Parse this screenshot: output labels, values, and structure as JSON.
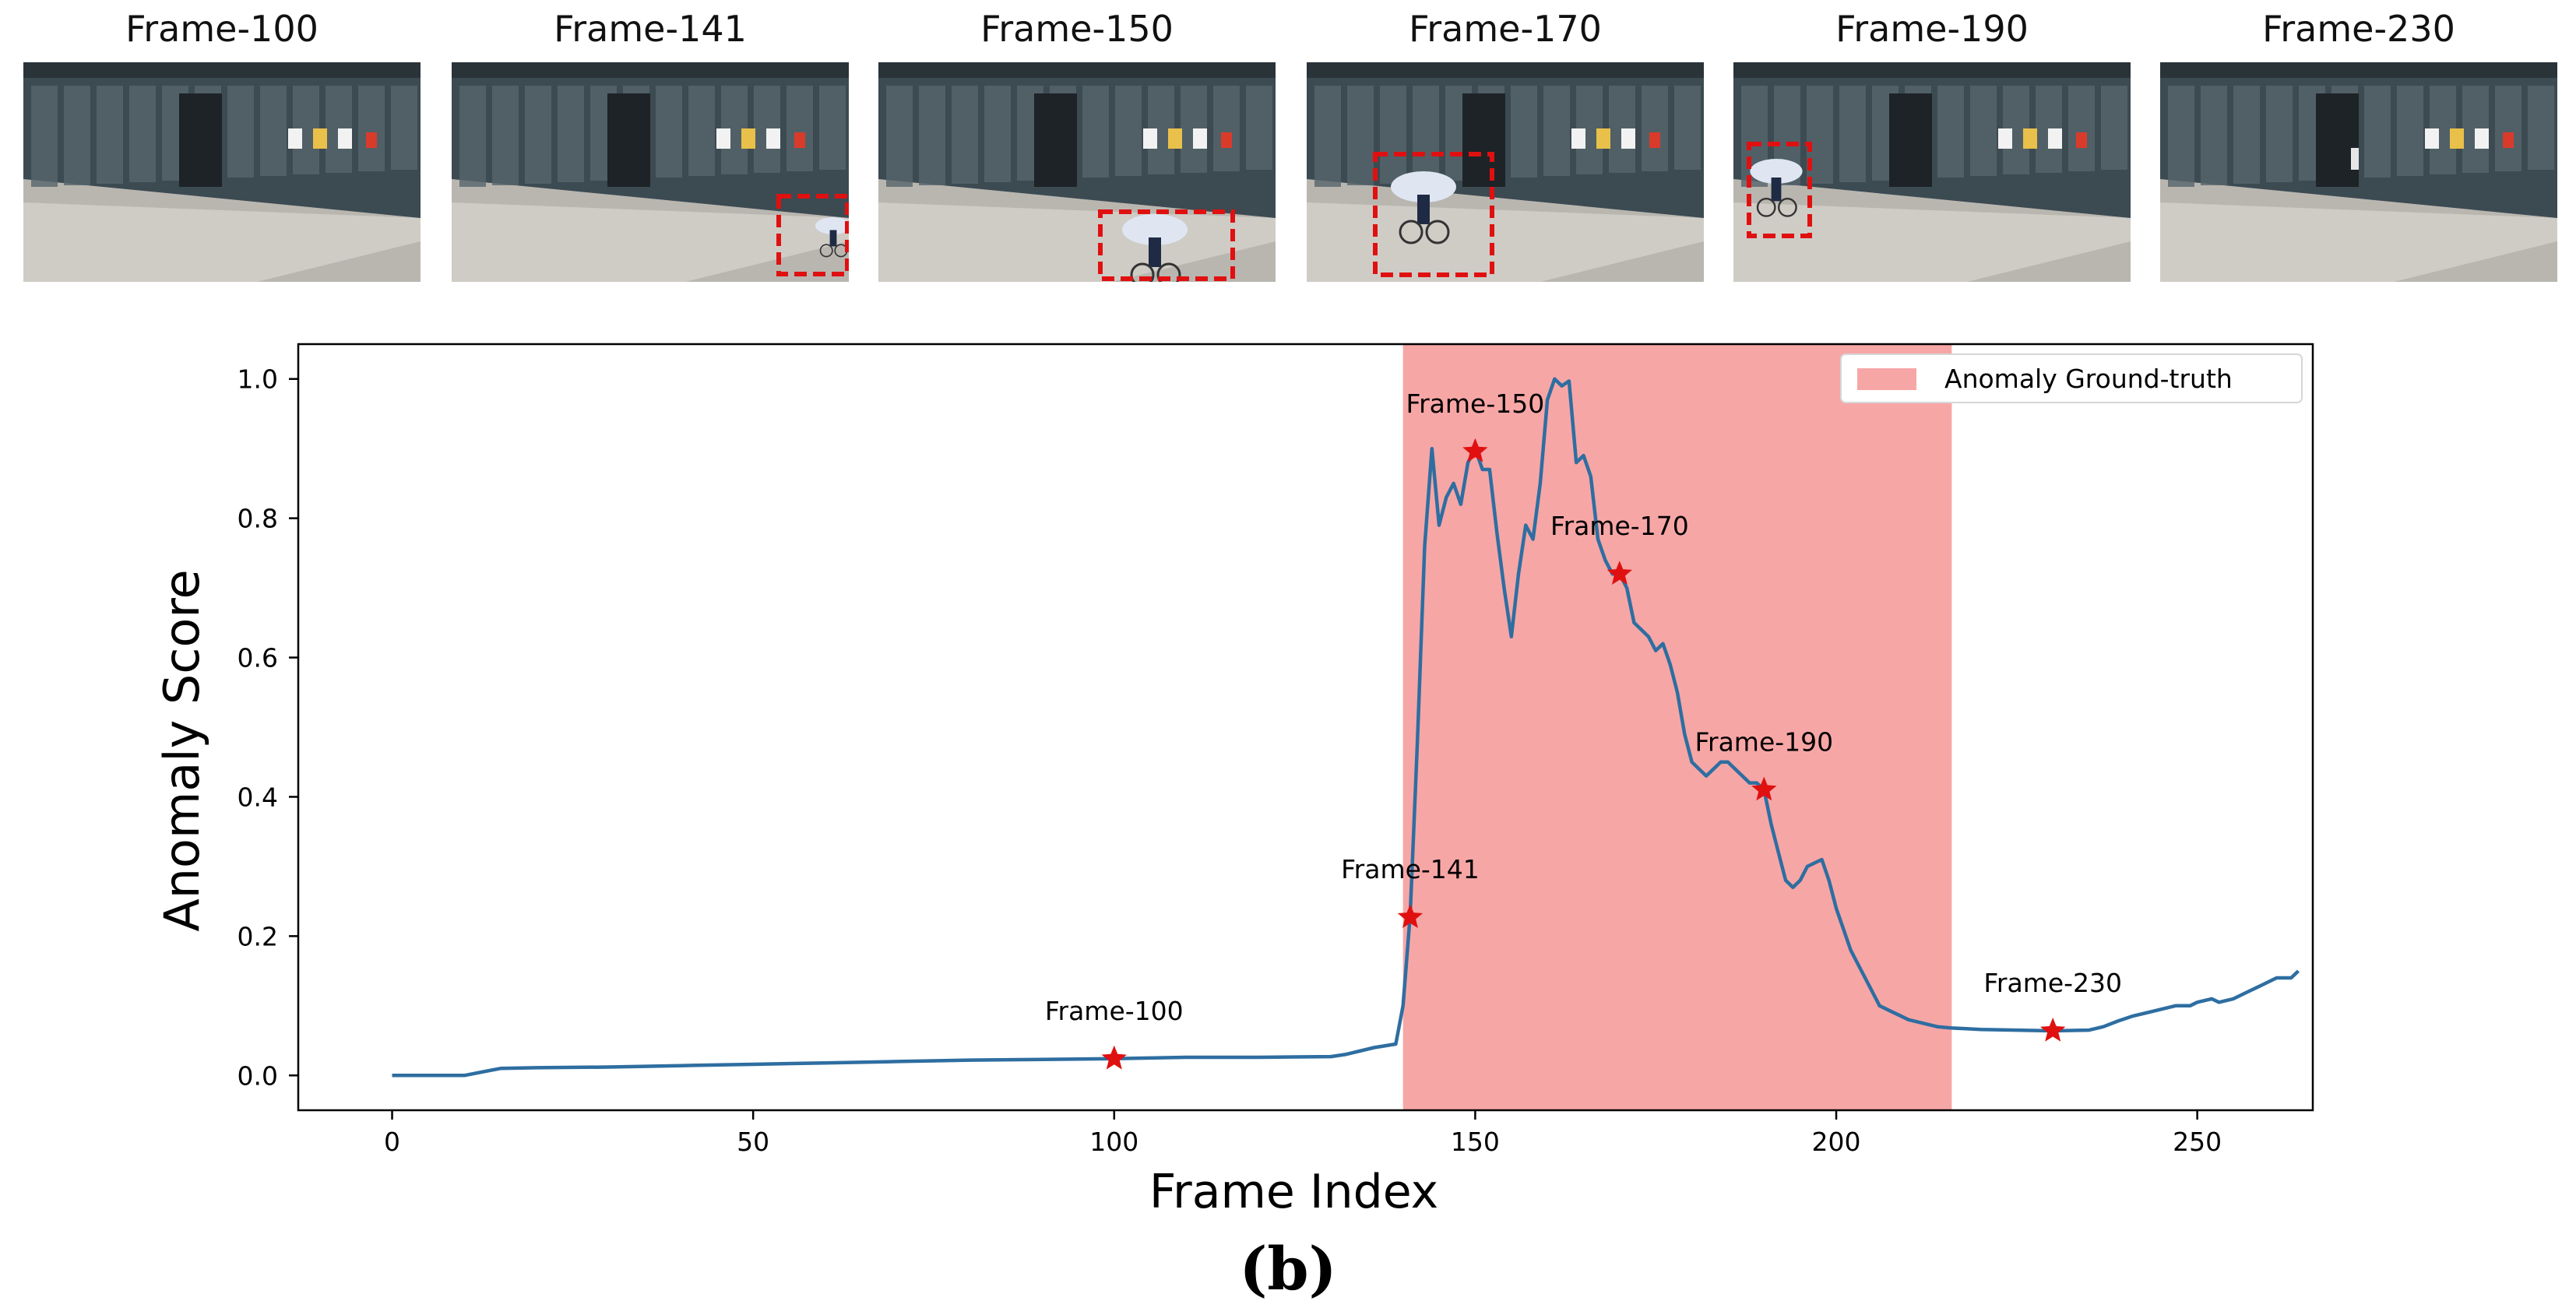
{
  "frames": [
    {
      "label": "Frame-100",
      "has_box": false
    },
    {
      "label": "Frame-141",
      "has_box": true
    },
    {
      "label": "Frame-150",
      "has_box": true
    },
    {
      "label": "Frame-170",
      "has_box": true
    },
    {
      "label": "Frame-190",
      "has_box": true
    },
    {
      "label": "Frame-230",
      "has_box": false
    }
  ],
  "panel_label": "(b)",
  "colors": {
    "line": "#2e6ea1",
    "band": "#f7a6a6",
    "star": "#e01010",
    "box": "#e01010"
  },
  "chart_data": {
    "type": "line",
    "title": "",
    "xlabel": "Frame Index",
    "ylabel": "Anomaly Score",
    "xlim": [
      -13,
      266
    ],
    "ylim": [
      -0.05,
      1.05
    ],
    "xticks": [
      0,
      50,
      100,
      150,
      200,
      250
    ],
    "yticks": [
      0.0,
      0.2,
      0.4,
      0.6,
      0.8,
      1.0
    ],
    "grid": false,
    "legend": {
      "position": "top-right",
      "label": "Anomaly Ground-truth"
    },
    "ground_truth_region": [
      140,
      216
    ],
    "series": [
      {
        "x": [
          0,
          5,
          10,
          15,
          20,
          30,
          40,
          50,
          60,
          70,
          80,
          90,
          100,
          110,
          120,
          130,
          132,
          136,
          139,
          140,
          141,
          142,
          143,
          144,
          145,
          146,
          147,
          148,
          149,
          150,
          151,
          152,
          153,
          154,
          155,
          156,
          157,
          158,
          159,
          160,
          161,
          162,
          163,
          164,
          165,
          166,
          167,
          168,
          169,
          170,
          171,
          172,
          173,
          174,
          175,
          176,
          177,
          178,
          179,
          180,
          181,
          182,
          183,
          184,
          185,
          186,
          187,
          188,
          189,
          190,
          191,
          192,
          193,
          194,
          195,
          196,
          197,
          198,
          199,
          200,
          201,
          202,
          203,
          204,
          205,
          206,
          207,
          208,
          209,
          210,
          212,
          214,
          216,
          218,
          220,
          225,
          230,
          235,
          237,
          239,
          241,
          243,
          245,
          247,
          249,
          250,
          252,
          253,
          255,
          257,
          259,
          261,
          263,
          264
        ],
        "y": [
          0.0,
          0.0,
          0.0,
          0.01,
          0.011,
          0.012,
          0.014,
          0.016,
          0.018,
          0.02,
          0.022,
          0.023,
          0.024,
          0.026,
          0.026,
          0.027,
          0.03,
          0.04,
          0.045,
          0.1,
          0.23,
          0.48,
          0.76,
          0.9,
          0.79,
          0.83,
          0.85,
          0.82,
          0.88,
          0.9,
          0.87,
          0.87,
          0.78,
          0.7,
          0.63,
          0.72,
          0.79,
          0.77,
          0.85,
          0.97,
          1.0,
          0.99,
          0.997,
          0.88,
          0.89,
          0.86,
          0.77,
          0.74,
          0.72,
          0.72,
          0.7,
          0.65,
          0.64,
          0.63,
          0.61,
          0.62,
          0.59,
          0.55,
          0.49,
          0.45,
          0.44,
          0.43,
          0.44,
          0.45,
          0.45,
          0.44,
          0.43,
          0.42,
          0.42,
          0.41,
          0.36,
          0.32,
          0.28,
          0.27,
          0.28,
          0.3,
          0.305,
          0.31,
          0.28,
          0.24,
          0.21,
          0.18,
          0.16,
          0.14,
          0.12,
          0.1,
          0.095,
          0.09,
          0.085,
          0.08,
          0.075,
          0.07,
          0.068,
          0.067,
          0.066,
          0.065,
          0.064,
          0.065,
          0.07,
          0.078,
          0.085,
          0.09,
          0.095,
          0.1,
          0.1,
          0.105,
          0.11,
          0.105,
          0.11,
          0.12,
          0.13,
          0.14,
          0.14,
          0.15
        ]
      }
    ],
    "annotations": [
      {
        "x": 100,
        "y": 0.024,
        "label": "Frame-100"
      },
      {
        "x": 141,
        "y": 0.227,
        "label": "Frame-141"
      },
      {
        "x": 150,
        "y": 0.896,
        "label": "Frame-150"
      },
      {
        "x": 170,
        "y": 0.72,
        "label": "Frame-170"
      },
      {
        "x": 190,
        "y": 0.41,
        "label": "Frame-190"
      },
      {
        "x": 230,
        "y": 0.064,
        "label": "Frame-230"
      }
    ]
  }
}
